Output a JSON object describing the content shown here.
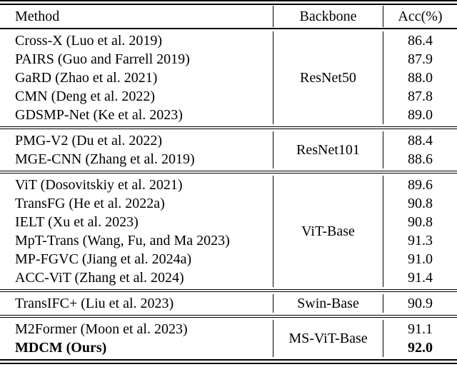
{
  "table": {
    "headers": {
      "method": "Method",
      "backbone": "Backbone",
      "acc": "Acc(%)"
    },
    "groups": [
      {
        "backbone": "ResNet50",
        "rows": [
          {
            "method": "Cross-X (Luo et al. 2019)",
            "acc": "86.4"
          },
          {
            "method": "PAIRS (Guo and Farrell 2019)",
            "acc": "87.9"
          },
          {
            "method": "GaRD (Zhao et al. 2021)",
            "acc": "88.0"
          },
          {
            "method": "CMN (Deng et al. 2022)",
            "acc": "87.8"
          },
          {
            "method": "GDSMP-Net (Ke et al. 2023)",
            "acc": "89.0"
          }
        ]
      },
      {
        "backbone": "ResNet101",
        "rows": [
          {
            "method": "PMG-V2 (Du et al. 2022)",
            "acc": "88.4"
          },
          {
            "method": "MGE-CNN (Zhang et al. 2019)",
            "acc": "88.6"
          }
        ]
      },
      {
        "backbone": "ViT-Base",
        "rows": [
          {
            "method": "ViT (Dosovitskiy et al. 2021)",
            "acc": "89.6"
          },
          {
            "method": "TransFG (He et al. 2022a)",
            "acc": "90.8"
          },
          {
            "method": "IELT (Xu et al. 2023)",
            "acc": "90.8"
          },
          {
            "method": "MpT-Trans (Wang, Fu, and Ma 2023)",
            "acc": "91.3"
          },
          {
            "method": "MP-FGVC (Jiang et al. 2024a)",
            "acc": "91.0"
          },
          {
            "method": "ACC-ViT (Zhang et al. 2024)",
            "acc": "91.4"
          }
        ]
      },
      {
        "backbone": "Swin-Base",
        "rows": [
          {
            "method": "TransIFC+ (Liu et al. 2023)",
            "acc": "90.9"
          }
        ]
      },
      {
        "backbone": "MS-ViT-Base",
        "rows": [
          {
            "method": "M2Former (Moon et al. 2023)",
            "acc": "91.1"
          },
          {
            "method": "MDCM (Ours)",
            "acc": "92.0"
          }
        ]
      }
    ]
  }
}
